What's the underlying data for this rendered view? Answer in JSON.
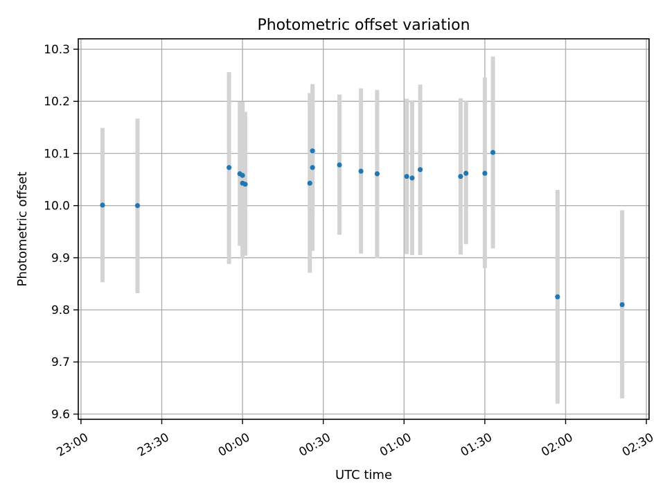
{
  "chart_data": {
    "type": "scatter",
    "title": "Photometric offset variation",
    "xlabel": "UTC time",
    "ylabel": "Photometric offset",
    "grid": true,
    "xaxis": {
      "kind": "time",
      "range": [
        "22:59",
        "02:31"
      ],
      "ticks": [
        "23:00",
        "23:30",
        "00:00",
        "00:30",
        "01:00",
        "01:30",
        "02:00",
        "02:30"
      ]
    },
    "ylim": [
      9.59,
      10.32
    ],
    "yticks": [
      "9.6",
      "9.7",
      "9.8",
      "9.9",
      "10.0",
      "10.1",
      "10.2",
      "10.3"
    ],
    "colors": {
      "point": "#1f77b4",
      "errorbar": "#d3d3d3"
    },
    "series": [
      {
        "points": [
          {
            "time": "23:08",
            "y": 10.001,
            "ylow": 9.853,
            "yhigh": 10.149
          },
          {
            "time": "23:21",
            "y": 10.0,
            "ylow": 9.832,
            "yhigh": 10.167
          },
          {
            "time": "23:55",
            "y": 10.073,
            "ylow": 9.888,
            "yhigh": 10.256
          },
          {
            "time": "23:59",
            "y": 10.061,
            "ylow": 9.923,
            "yhigh": 10.199
          },
          {
            "time": "00:00",
            "y": 10.058,
            "ylow": 9.918,
            "yhigh": 10.199
          },
          {
            "time": "00:00",
            "y": 10.043,
            "ylow": 9.898,
            "yhigh": 10.189
          },
          {
            "time": "00:01",
            "y": 10.041,
            "ylow": 9.904,
            "yhigh": 10.18
          },
          {
            "time": "00:25",
            "y": 10.043,
            "ylow": 9.871,
            "yhigh": 10.216
          },
          {
            "time": "00:26",
            "y": 10.073,
            "ylow": 9.913,
            "yhigh": 10.233
          },
          {
            "time": "00:26",
            "y": 10.105,
            "ylow": 9.985,
            "yhigh": 10.227
          },
          {
            "time": "00:36",
            "y": 10.078,
            "ylow": 9.944,
            "yhigh": 10.213
          },
          {
            "time": "00:44",
            "y": 10.066,
            "ylow": 9.908,
            "yhigh": 10.225
          },
          {
            "time": "00:50",
            "y": 10.061,
            "ylow": 9.899,
            "yhigh": 10.222
          },
          {
            "time": "01:01",
            "y": 10.056,
            "ylow": 9.907,
            "yhigh": 10.205
          },
          {
            "time": "01:03",
            "y": 10.053,
            "ylow": 9.905,
            "yhigh": 10.202
          },
          {
            "time": "01:06",
            "y": 10.069,
            "ylow": 9.905,
            "yhigh": 10.232
          },
          {
            "time": "01:21",
            "y": 10.056,
            "ylow": 9.906,
            "yhigh": 10.206
          },
          {
            "time": "01:23",
            "y": 10.062,
            "ylow": 9.926,
            "yhigh": 10.2
          },
          {
            "time": "01:30",
            "y": 10.062,
            "ylow": 9.88,
            "yhigh": 10.246
          },
          {
            "time": "01:33",
            "y": 10.102,
            "ylow": 9.918,
            "yhigh": 10.286
          },
          {
            "time": "01:57",
            "y": 9.825,
            "ylow": 9.62,
            "yhigh": 10.03
          },
          {
            "time": "02:21",
            "y": 9.81,
            "ylow": 9.63,
            "yhigh": 9.991
          }
        ]
      }
    ]
  }
}
